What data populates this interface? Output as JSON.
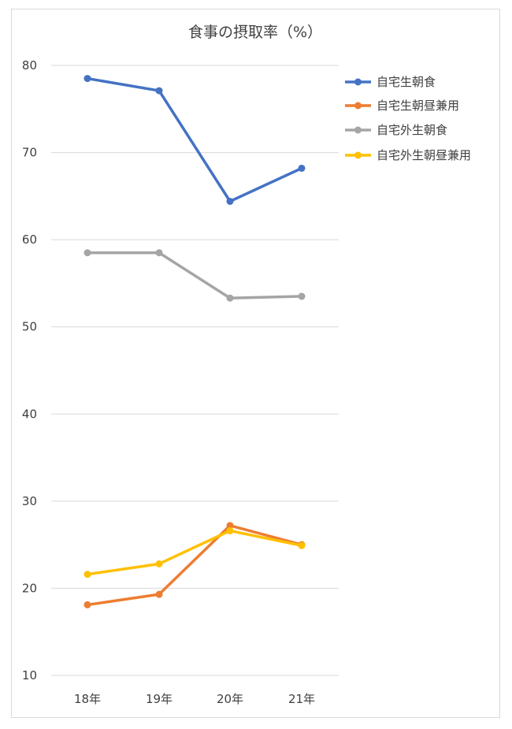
{
  "chart_data": {
    "type": "line",
    "title": "食事の摂取率（%）",
    "xlabel": "",
    "ylabel": "",
    "categories": [
      "18年",
      "19年",
      "20年",
      "21年"
    ],
    "ylim": [
      10,
      80
    ],
    "yticks": [
      10,
      20,
      30,
      40,
      50,
      60,
      70,
      80
    ],
    "grid": true,
    "legend": "right",
    "series": [
      {
        "name": "自宅生朝食",
        "color": "#4472C4",
        "values": [
          78.5,
          77.1,
          64.4,
          68.2
        ]
      },
      {
        "name": "自宅生朝昼兼用",
        "color": "#ED7D31",
        "values": [
          18.1,
          19.3,
          27.2,
          25.0
        ]
      },
      {
        "name": "自宅外生朝食",
        "color": "#A5A5A5",
        "values": [
          58.5,
          58.5,
          53.3,
          53.5
        ]
      },
      {
        "name": "自宅外生朝昼兼用",
        "color": "#FFC000",
        "values": [
          21.6,
          22.8,
          26.6,
          24.9
        ]
      }
    ]
  }
}
